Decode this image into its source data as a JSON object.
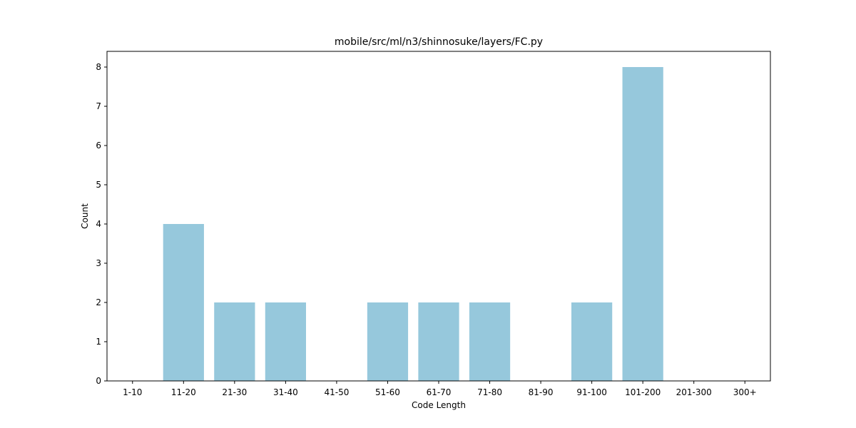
{
  "chart_data": {
    "type": "bar",
    "title": "mobile/src/ml/n3/shinnosuke/layers/FC.py",
    "xlabel": "Code Length",
    "ylabel": "Count",
    "categories": [
      "1-10",
      "11-20",
      "21-30",
      "31-40",
      "41-50",
      "51-60",
      "61-70",
      "71-80",
      "81-90",
      "91-100",
      "101-200",
      "201-300",
      "300+"
    ],
    "values": [
      0,
      4,
      2,
      2,
      0,
      2,
      2,
      2,
      0,
      2,
      8,
      0,
      0
    ],
    "yticks": [
      "0",
      "1",
      "2",
      "3",
      "4",
      "5",
      "6",
      "7",
      "8"
    ],
    "ylim": [
      0,
      8.4
    ],
    "bar_color": "#96c8dc",
    "grid": false,
    "legend": "none"
  }
}
